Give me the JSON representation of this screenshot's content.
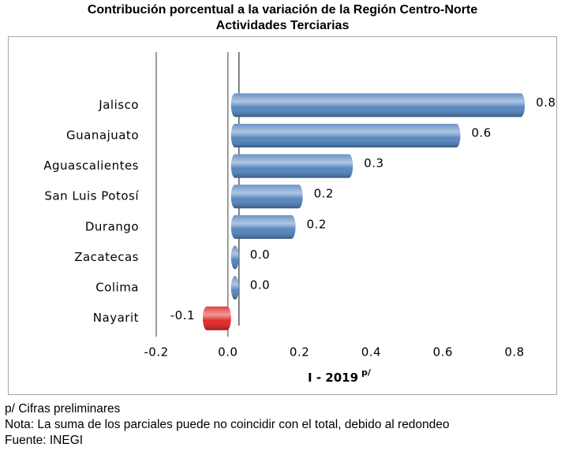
{
  "chart_data": {
    "type": "bar",
    "orientation": "horizontal",
    "title": "Contribución porcentual a la variación de la Región Centro-Norte",
    "subtitle": "Actividades Terciarias",
    "categories": [
      "Jalisco",
      "Guanajuato",
      "Aguascalientes",
      "San Luis Potosí",
      "Durango",
      "Zacatecas",
      "Colima",
      "Nayarit"
    ],
    "series": [
      {
        "color": "#4f81bd",
        "negative_color": "#e0201c",
        "values": [
          0.82,
          0.64,
          0.34,
          0.2,
          0.18,
          0.01,
          0.01,
          -0.07
        ],
        "value_labels": [
          "0.8",
          "0.6",
          "0.3",
          "0.2",
          "0.2",
          "0.0",
          "0.0",
          "-0.1"
        ]
      }
    ],
    "xlim": [
      -0.2,
      0.8
    ],
    "xticks": [
      -0.2,
      {
        "value": 0,
        "label": "0.0"
      },
      0.2,
      0.4,
      0.6,
      0.8
    ],
    "x_label": "I - 2019",
    "x_label_sup": "p/",
    "grid": false
  },
  "footnotes": [
    "p/ Cifras preliminares",
    "Nota: La suma de los parciales puede no coincidir con el total, debido al redondeo",
    "Fuente: INEGI"
  ]
}
